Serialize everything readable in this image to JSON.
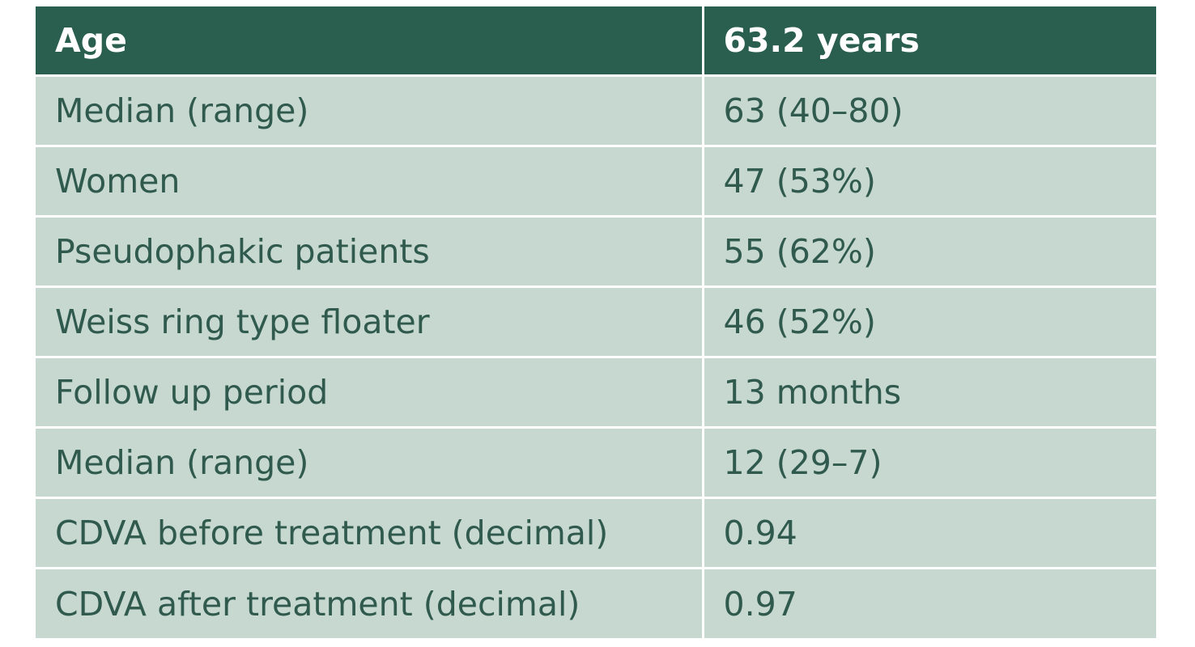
{
  "table": {
    "header": {
      "label": "Age",
      "value": "63.2 years"
    },
    "rows": [
      {
        "label": "Median (range)",
        "value": "63 (40–80)"
      },
      {
        "label": "Women",
        "value": "47 (53%)"
      },
      {
        "label": "Pseudophakic patients",
        "value": "55 (62%)"
      },
      {
        "label": "Weiss ring type floater",
        "value": "46 (52%)"
      },
      {
        "label": "Follow up period",
        "value": "13 months"
      },
      {
        "label": "Median (range)",
        "value": "12 (29–7)"
      },
      {
        "label": "CDVA before treatment (decimal)",
        "value": "0.94"
      },
      {
        "label": "CDVA after treatment (decimal)",
        "value": "0.97"
      }
    ]
  },
  "colors": {
    "header_bg": "#2a5f4f",
    "row_bg": "#c7d8d0",
    "row_text": "#2f5a4d",
    "divider": "#ffffff"
  }
}
